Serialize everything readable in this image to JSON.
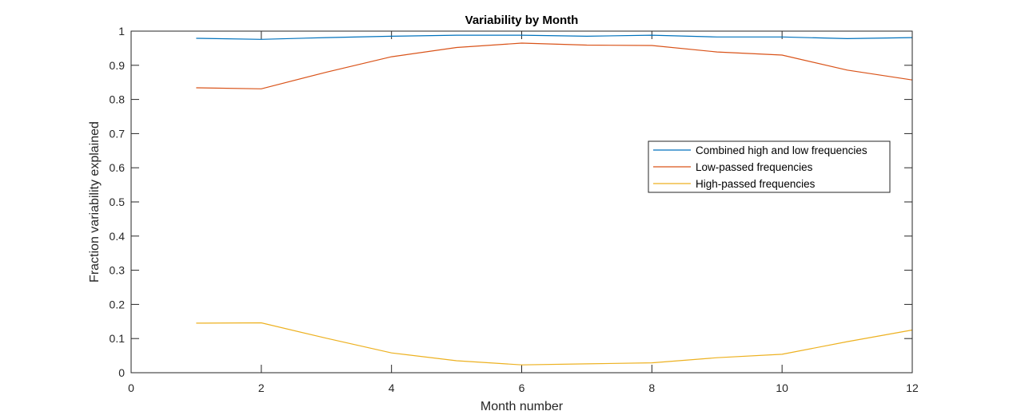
{
  "chart_data": {
    "type": "line",
    "title": "Variability by Month",
    "xlabel": "Month number",
    "ylabel": "Fraction variability explained",
    "xlim": [
      0,
      12
    ],
    "ylim": [
      0,
      1
    ],
    "xticks": [
      0,
      2,
      4,
      6,
      8,
      10,
      12
    ],
    "yticks": [
      0,
      0.1,
      0.2,
      0.3,
      0.4,
      0.5,
      0.6,
      0.7,
      0.8,
      0.9,
      1
    ],
    "grid": false,
    "legend_position": "right",
    "series": [
      {
        "name": "Combined high and low frequencies",
        "color": "#0072BD",
        "x": [
          1,
          2,
          3,
          4,
          5,
          6,
          7,
          8,
          9,
          10,
          11,
          12
        ],
        "values": [
          0.979,
          0.976,
          0.981,
          0.985,
          0.988,
          0.988,
          0.985,
          0.988,
          0.983,
          0.983,
          0.978,
          0.981
        ]
      },
      {
        "name": "Low-passed frequencies",
        "color": "#D95319",
        "x": [
          1,
          2,
          3,
          4,
          5,
          6,
          7,
          8,
          9,
          10,
          11,
          12
        ],
        "values": [
          0.834,
          0.831,
          0.88,
          0.925,
          0.952,
          0.965,
          0.959,
          0.958,
          0.939,
          0.93,
          0.886,
          0.857
        ]
      },
      {
        "name": "High-passed frequencies",
        "color": "#EDB120",
        "x": [
          1,
          2,
          3,
          4,
          5,
          6,
          7,
          8,
          9,
          10,
          11,
          12
        ],
        "values": [
          0.145,
          0.146,
          0.101,
          0.058,
          0.035,
          0.023,
          0.026,
          0.029,
          0.044,
          0.054,
          0.091,
          0.125
        ]
      }
    ]
  }
}
